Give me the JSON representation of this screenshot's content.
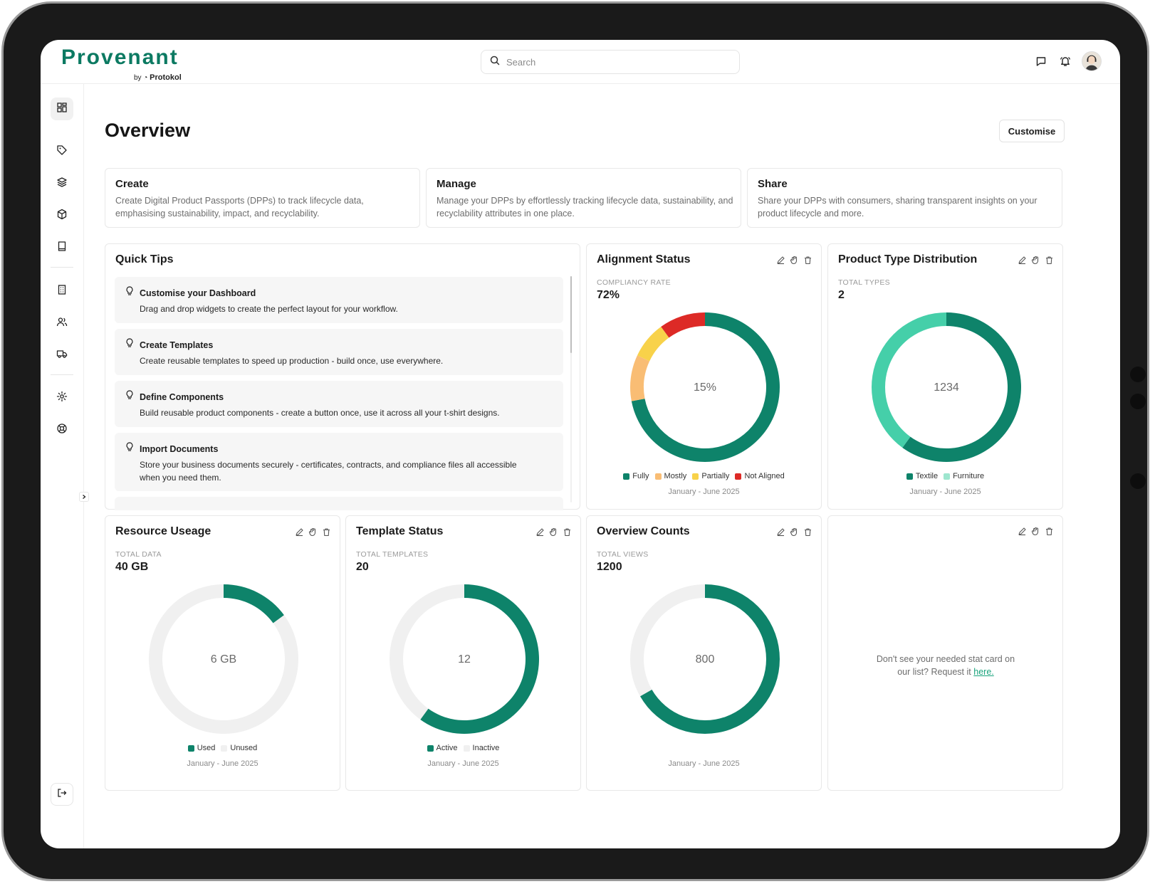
{
  "app": {
    "logo": "Provenant",
    "logo_by": "by",
    "logo_company": "Protokol"
  },
  "search": {
    "placeholder": "Search"
  },
  "page": {
    "title": "Overview",
    "customise_label": "Customise"
  },
  "intro_cards": [
    {
      "title": "Create",
      "description": "Create Digital Product Passports (DPPs) to track lifecycle data, emphasising sustainability, impact, and recyclability."
    },
    {
      "title": "Manage",
      "description": "Manage your DPPs by effortlessly tracking lifecycle data, sustainability, and recyclability attributes in one place."
    },
    {
      "title": "Share",
      "description": "Share your DPPs with consumers, sharing transparent insights on your product lifecycle and more."
    }
  ],
  "quick_tips": {
    "title": "Quick Tips",
    "items": [
      {
        "title": "Customise your Dashboard",
        "description": "Drag and drop widgets to create the perfect layout for your workflow."
      },
      {
        "title": "Create Templates",
        "description": "Create reusable templates to speed up production - build once, use everywhere."
      },
      {
        "title": "Define Components",
        "description": "Build reusable product components - create a button once, use it across all your t-shirt designs."
      },
      {
        "title": "Import Documents",
        "description": "Store your business documents securely - certificates, contracts, and compliance files all accessible when you need them."
      }
    ]
  },
  "widgets": {
    "alignment": {
      "title": "Alignment Status",
      "metric_label": "COMPLIANCY RATE",
      "metric_value": "72%",
      "center": "15%",
      "period": "January - June 2025",
      "legend": [
        "Fully",
        "Mostly",
        "Partially",
        "Not Aligned"
      ]
    },
    "product_type": {
      "title": "Product Type Distribution",
      "metric_label": "TOTAL TYPES",
      "metric_value": "2",
      "center": "1234",
      "period": "January - June 2025",
      "legend": [
        "Textile",
        "Furniture"
      ]
    },
    "resource": {
      "title": "Resource Useage",
      "metric_label": "TOTAL DATA",
      "metric_value": "40 GB",
      "center": "6 GB",
      "period": "January - June 2025",
      "legend": [
        "Used",
        "Unused"
      ]
    },
    "template": {
      "title": "Template Status",
      "metric_label": "TOTAL TEMPLATES",
      "metric_value": "20",
      "center": "12",
      "period": "January - June 2025",
      "legend": [
        "Active",
        "Inactive"
      ]
    },
    "overview_counts": {
      "title": "Overview Counts",
      "metric_label": "TOTAL VIEWS",
      "metric_value": "1200",
      "center": "800",
      "period": "January - June 2025"
    },
    "request": {
      "text": "Don't see your needed stat card on our list? Request it",
      "link": "here."
    }
  },
  "colors": {
    "brand": "#0c7a62",
    "teal_dark": "#0e836a",
    "teal_light": "#45cfa9",
    "orange": "#f9bd74",
    "yellow": "#f8d24a",
    "red": "#dd2a26",
    "unused": "#f0f0f0",
    "link": "#19a37c"
  },
  "chart_data": [
    {
      "type": "pie",
      "title": "Alignment Status",
      "categories": [
        "Fully",
        "Mostly",
        "Partially",
        "Not Aligned"
      ],
      "values": [
        72,
        10,
        8,
        10
      ]
    },
    {
      "type": "pie",
      "title": "Product Type Distribution",
      "categories": [
        "Textile",
        "Furniture"
      ],
      "values": [
        60,
        40
      ]
    },
    {
      "type": "pie",
      "title": "Resource Useage",
      "categories": [
        "Used",
        "Unused"
      ],
      "values": [
        15,
        85
      ]
    },
    {
      "type": "pie",
      "title": "Template Status",
      "categories": [
        "Active",
        "Inactive"
      ],
      "values": [
        60,
        40
      ]
    },
    {
      "type": "pie",
      "title": "Overview Counts",
      "categories": [
        "",
        ""
      ],
      "values": [
        66.7,
        33.3
      ]
    }
  ]
}
